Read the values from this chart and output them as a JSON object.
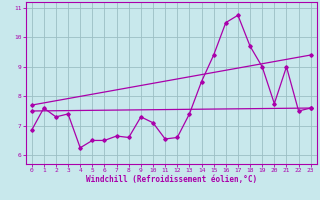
{
  "x": [
    0,
    1,
    2,
    3,
    4,
    5,
    6,
    7,
    8,
    9,
    10,
    11,
    12,
    13,
    14,
    15,
    16,
    17,
    18,
    19,
    20,
    21,
    22,
    23
  ],
  "line_data": [
    6.85,
    7.6,
    7.3,
    7.4,
    6.25,
    6.5,
    6.5,
    6.65,
    6.6,
    7.3,
    7.1,
    6.55,
    6.6,
    7.4,
    8.5,
    9.4,
    10.5,
    10.75,
    9.7,
    9.0,
    7.75,
    9.0,
    7.5,
    7.6
  ],
  "trend1_x": [
    0,
    23
  ],
  "trend1_y": [
    7.5,
    7.6
  ],
  "trend2_x": [
    0,
    23
  ],
  "trend2_y": [
    7.7,
    9.4
  ],
  "color": "#aa00aa",
  "bg_color": "#c8e8ec",
  "grid_color": "#9bbfc4",
  "xlabel": "Windchill (Refroidissement éolien,°C)",
  "ylim": [
    5.7,
    11.2
  ],
  "xlim": [
    -0.5,
    23.5
  ],
  "yticks": [
    6,
    7,
    8,
    9,
    10,
    11
  ],
  "xticks": [
    0,
    1,
    2,
    3,
    4,
    5,
    6,
    7,
    8,
    9,
    10,
    11,
    12,
    13,
    14,
    15,
    16,
    17,
    18,
    19,
    20,
    21,
    22,
    23
  ]
}
